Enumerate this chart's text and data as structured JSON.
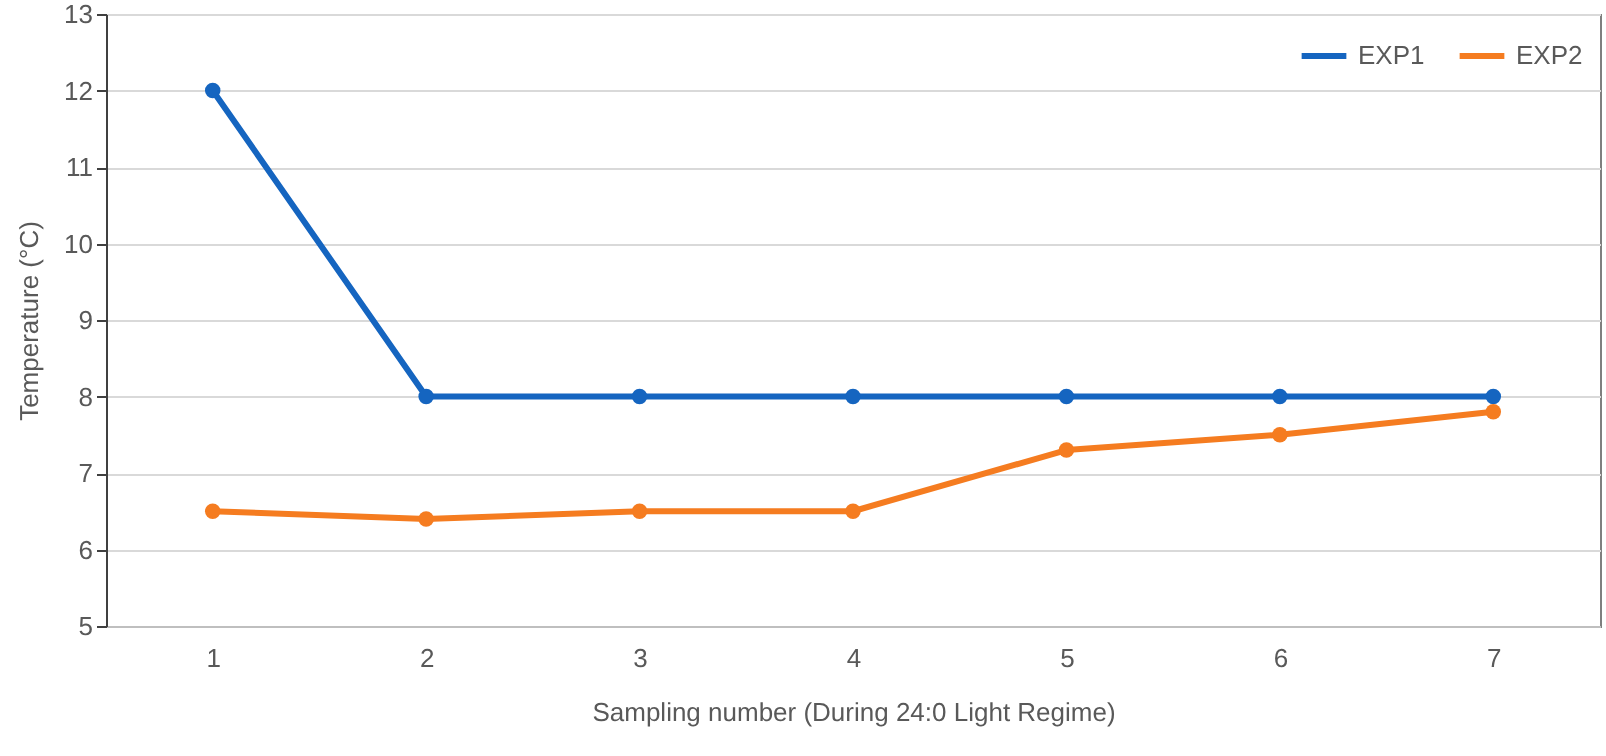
{
  "chart_data": {
    "type": "line",
    "xlabel": "Sampling number (During 24:0 Light Regime)",
    "ylabel": "Temperature (°C)",
    "categories": [
      "1",
      "2",
      "3",
      "4",
      "5",
      "6",
      "7"
    ],
    "series": [
      {
        "name": "EXP1",
        "color": "#1565c0",
        "values": [
          12,
          8,
          8,
          8,
          8,
          8,
          8
        ]
      },
      {
        "name": "EXP2",
        "color": "#f57c20",
        "values": [
          6.5,
          6.4,
          6.5,
          6.5,
          7.3,
          7.5,
          7.8
        ]
      }
    ],
    "ylim": [
      5,
      13
    ],
    "yticks": [
      5,
      6,
      7,
      8,
      9,
      10,
      11,
      12,
      13
    ],
    "grid": "y",
    "legend": "top right",
    "marker": "circle",
    "line_style": "solid"
  }
}
